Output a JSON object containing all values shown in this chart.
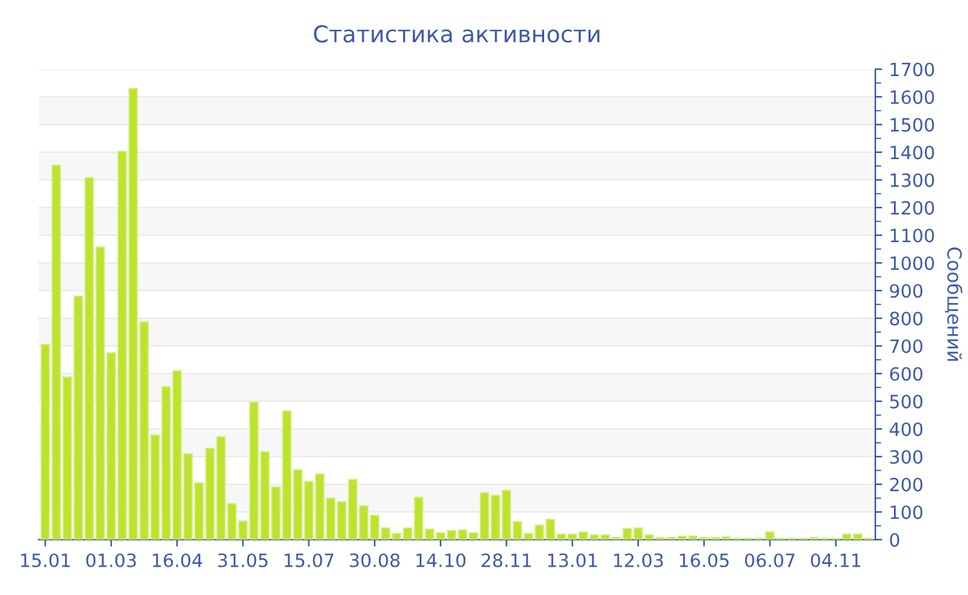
{
  "chart_data": {
    "type": "bar",
    "title": "Статистика активности",
    "ylabel": "Сообщений",
    "categories": [
      "15.01",
      null,
      null,
      null,
      null,
      null,
      "01.03",
      null,
      null,
      null,
      null,
      null,
      "16.04",
      null,
      null,
      null,
      null,
      null,
      "31.05",
      null,
      null,
      null,
      null,
      null,
      "15.07",
      null,
      null,
      null,
      null,
      null,
      "30.08",
      null,
      null,
      null,
      null,
      null,
      "14.10",
      null,
      null,
      null,
      null,
      null,
      "28.11",
      null,
      null,
      null,
      null,
      null,
      "13.01",
      null,
      null,
      null,
      null,
      null,
      "12.03",
      null,
      null,
      null,
      null,
      null,
      "16.05",
      null,
      null,
      null,
      null,
      null,
      "06.07",
      null,
      null,
      null,
      null,
      null,
      "04.11",
      null,
      null,
      null
    ],
    "values": [
      705,
      1353,
      588,
      880,
      1308,
      1057,
      675,
      1403,
      1630,
      787,
      378,
      553,
      610,
      310,
      205,
      330,
      372,
      130,
      67,
      497,
      317,
      190,
      465,
      252,
      210,
      237,
      150,
      137,
      217,
      122,
      88,
      42,
      22,
      42,
      153,
      38,
      25,
      33,
      35,
      25,
      170,
      160,
      178,
      65,
      22,
      52,
      73,
      20,
      20,
      27,
      17,
      17,
      8,
      40,
      42,
      17,
      8,
      8,
      12,
      13,
      8,
      8,
      10,
      5,
      5,
      5,
      28,
      5,
      5,
      5,
      8,
      5,
      5,
      20,
      20,
      5
    ],
    "color": "#bde32f",
    "ylim": [
      0,
      1700
    ],
    "yticks": [
      0,
      100,
      200,
      300,
      400,
      500,
      600,
      700,
      800,
      900,
      1000,
      1100,
      1200,
      1300,
      1400,
      1500,
      1600,
      1700
    ],
    "grid": "y"
  }
}
